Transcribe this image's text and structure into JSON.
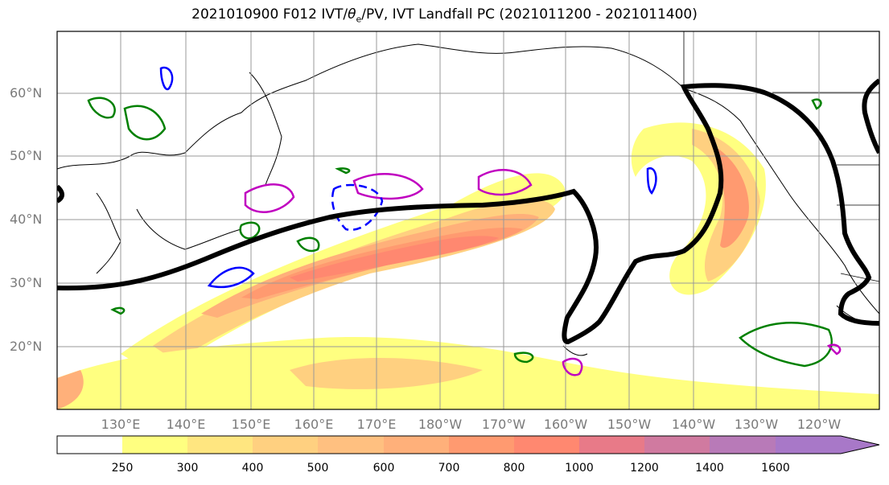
{
  "title": "2021010900 F012 IVT/",
  "title_theta": "θ",
  "title_sub": "e",
  "title_rest": "/PV, IVT Landfall PC (2021011200 - 2021011400)",
  "lat_labels": [
    "60°N",
    "50°N",
    "40°N",
    "30°N",
    "20°N"
  ],
  "lon_labels": [
    "130°E",
    "140°E",
    "150°E",
    "160°E",
    "170°E",
    "180°W",
    "170°W",
    "160°W",
    "150°W",
    "140°W",
    "130°W",
    "120°W"
  ],
  "colorbar": {
    "ticks": [
      "250",
      "300",
      "400",
      "500",
      "600",
      "700",
      "800",
      "1000",
      "1200",
      "1400",
      "1600"
    ],
    "colors": [
      "#ffffff",
      "#ffff80",
      "#ffe680",
      "#ffd080",
      "#ffc080",
      "#ffb07a",
      "#ff9a70",
      "#ff8870",
      "#e87a88",
      "#d07aa0",
      "#b87ab8",
      "#a878c8"
    ]
  },
  "contour_colors": {
    "landfall_pc": "#000000",
    "theta_e": "#008000",
    "pv_positive": "#c000c0",
    "pv_negative": "#0000ff"
  }
}
